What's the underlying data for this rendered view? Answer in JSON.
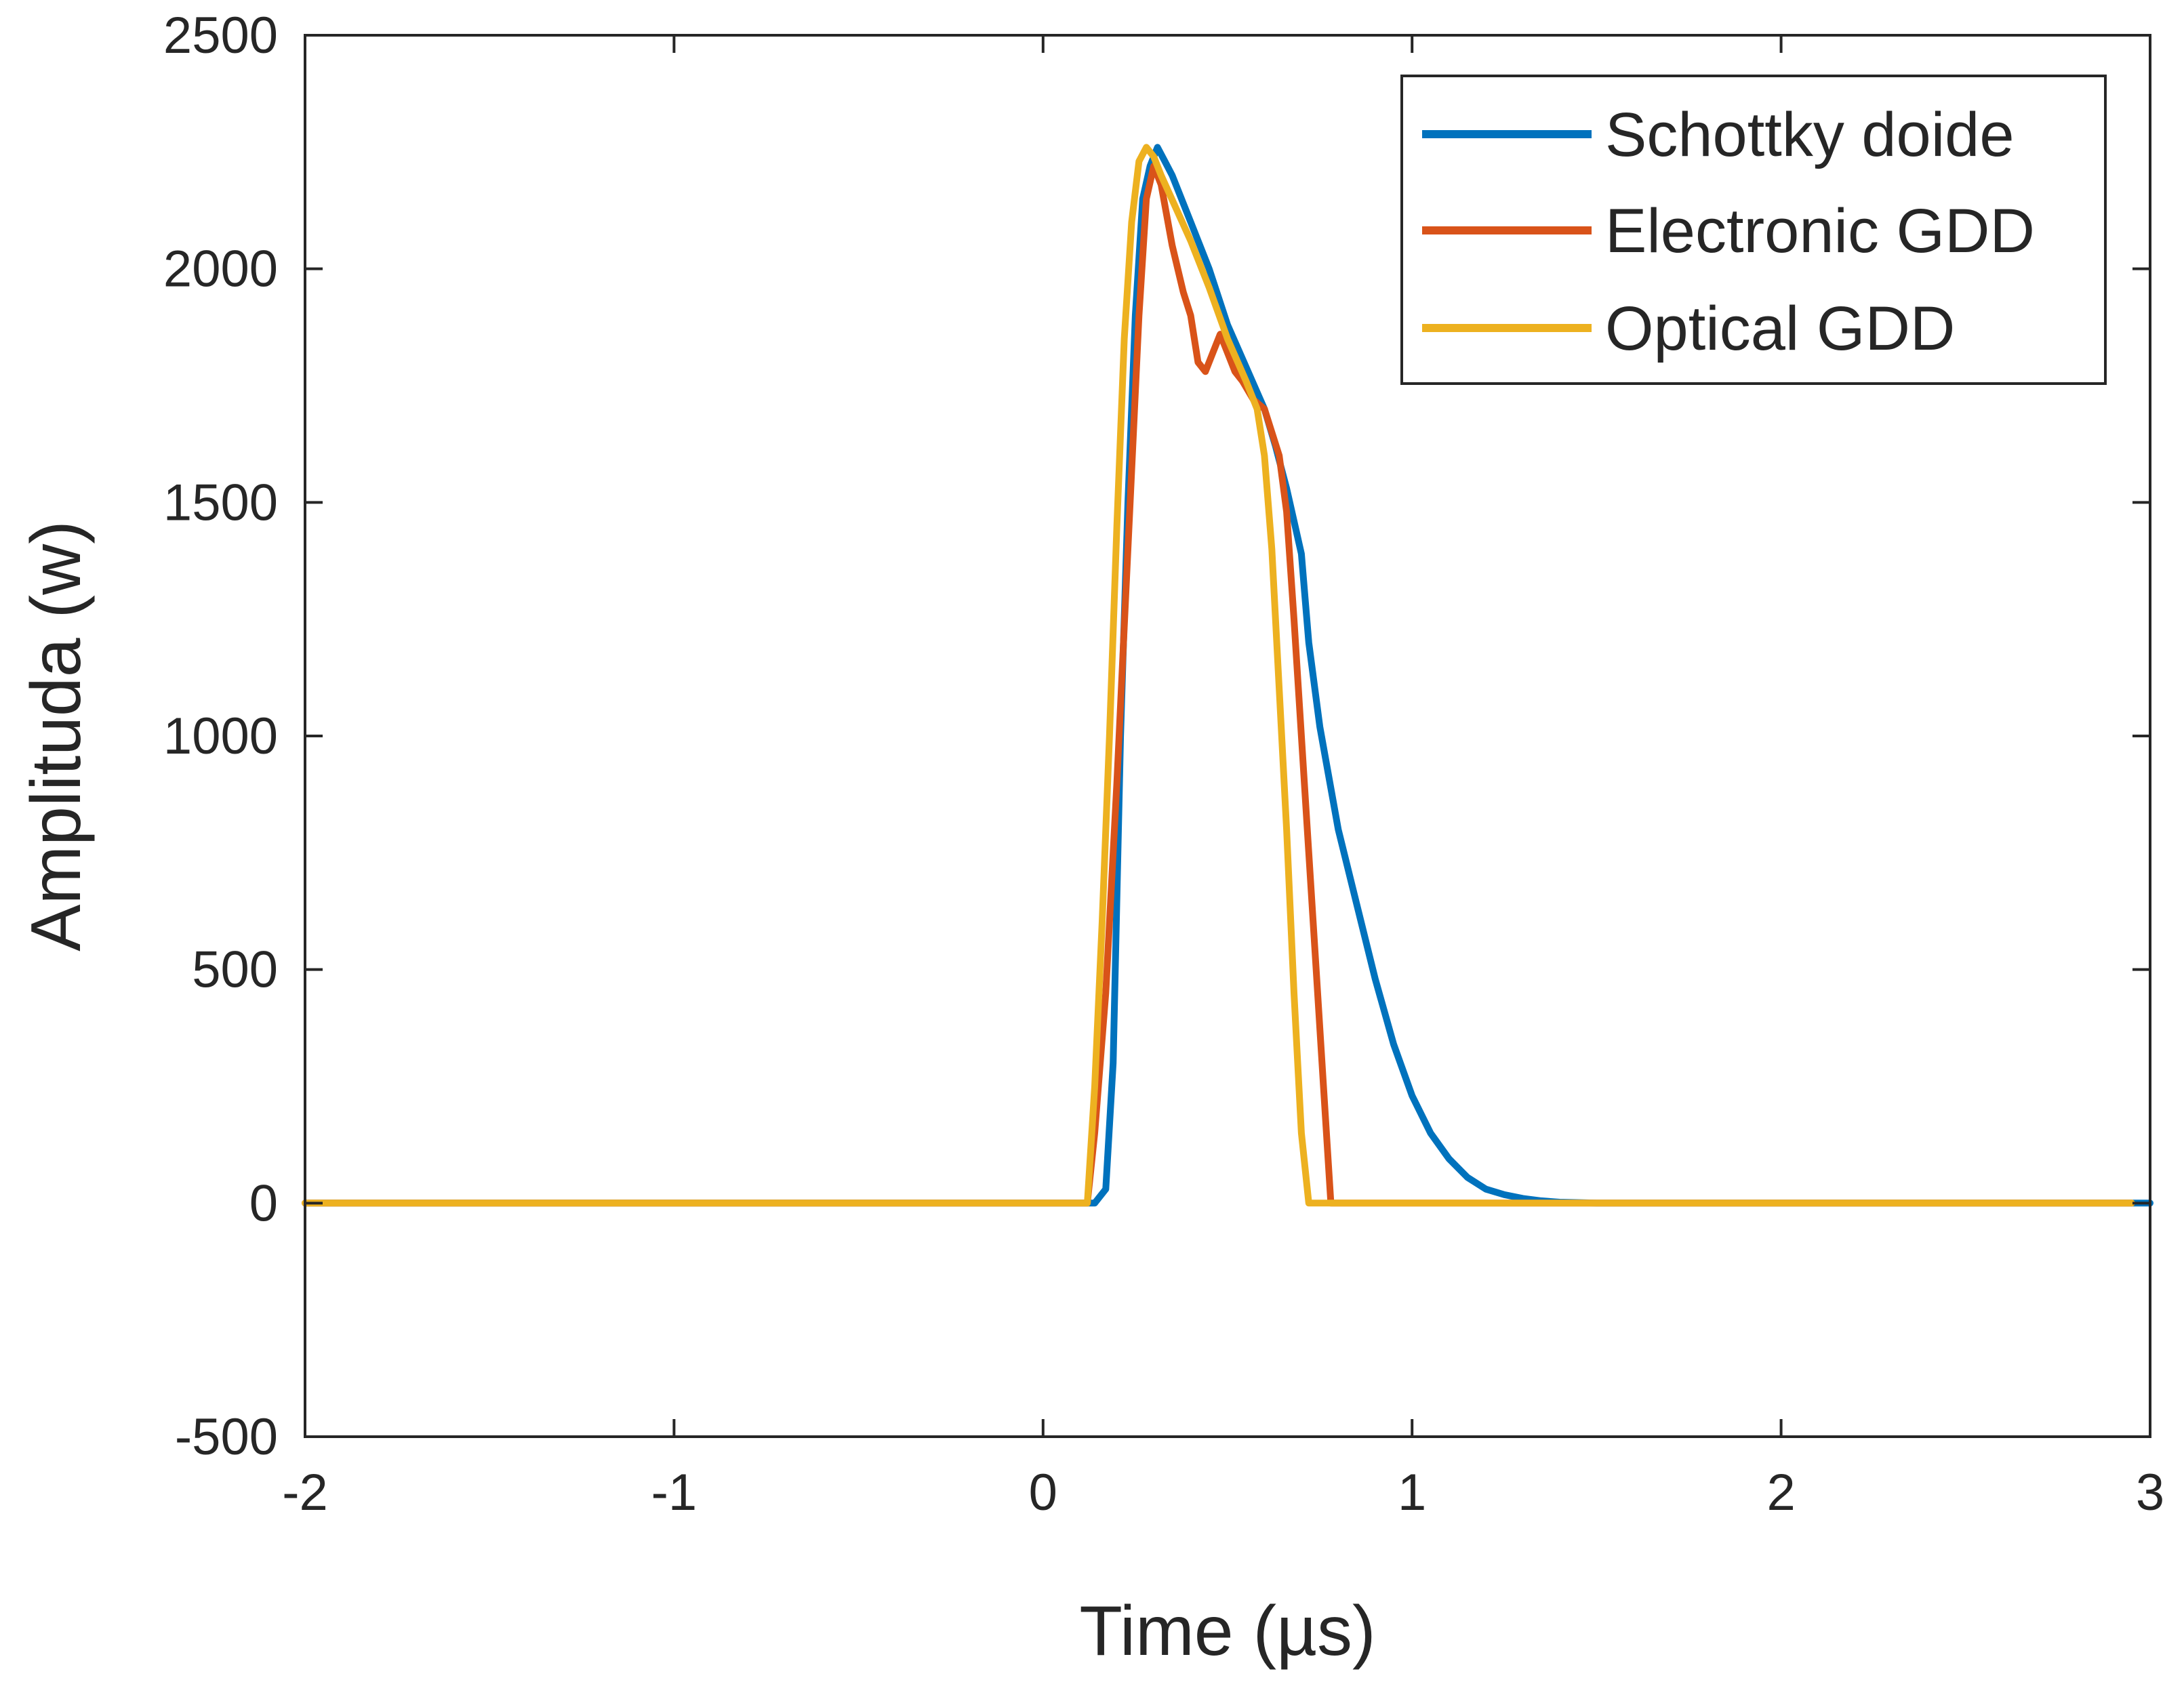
{
  "chart_data": {
    "type": "line",
    "title": "",
    "xlabel": "Time (µs)",
    "ylabel": "Amplituda (w)",
    "xlim": [
      -2,
      3
    ],
    "ylim": [
      -500,
      2500
    ],
    "xticks": [
      -2,
      -1,
      0,
      1,
      2,
      3
    ],
    "yticks": [
      -500,
      0,
      500,
      1000,
      1500,
      2000,
      2500
    ],
    "xtick_labels": [
      "-2",
      "-1",
      "0",
      "1",
      "2",
      "3"
    ],
    "ytick_labels": [
      "-500",
      "0",
      "500",
      "1000",
      "1500",
      "2000",
      "2500"
    ],
    "grid": false,
    "legend_position": "top-right",
    "series": [
      {
        "name": "Schottky doide",
        "color": "#0072BD",
        "x": [
          -2.0,
          0.14,
          0.17,
          0.19,
          0.21,
          0.23,
          0.25,
          0.27,
          0.29,
          0.31,
          0.33,
          0.35,
          0.4,
          0.45,
          0.5,
          0.55,
          0.6,
          0.63,
          0.66,
          0.68,
          0.7,
          0.72,
          0.75,
          0.8,
          0.85,
          0.9,
          0.95,
          1.0,
          1.05,
          1.1,
          1.15,
          1.2,
          1.25,
          1.3,
          1.35,
          1.4,
          1.5,
          1.6,
          3.0
        ],
        "y": [
          0,
          0,
          30,
          300,
          1000,
          1500,
          1900,
          2150,
          2220,
          2260,
          2230,
          2200,
          2100,
          2000,
          1880,
          1790,
          1700,
          1620,
          1530,
          1460,
          1390,
          1200,
          1020,
          800,
          640,
          480,
          340,
          230,
          150,
          95,
          55,
          30,
          18,
          10,
          5,
          2,
          0,
          0,
          0
        ]
      },
      {
        "name": "Electronic GDD",
        "color": "#D95319",
        "x": [
          -2.0,
          -1.88,
          0.12,
          0.14,
          0.17,
          0.2,
          0.23,
          0.26,
          0.28,
          0.3,
          0.32,
          0.35,
          0.38,
          0.4,
          0.42,
          0.44,
          0.46,
          0.48,
          0.5,
          0.52,
          0.54,
          0.57,
          0.6,
          0.62,
          0.64,
          0.66,
          0.68,
          0.7,
          0.72,
          0.74,
          0.76,
          0.78,
          2.74,
          2.95
        ],
        "y": [
          0,
          0,
          0,
          150,
          450,
          900,
          1400,
          1900,
          2150,
          2220,
          2180,
          2050,
          1950,
          1900,
          1800,
          1780,
          1820,
          1860,
          1820,
          1780,
          1760,
          1720,
          1700,
          1650,
          1600,
          1480,
          1250,
          1000,
          750,
          500,
          250,
          0,
          0,
          0
        ]
      },
      {
        "name": "Optical GDD",
        "color": "#EDB120",
        "x": [
          -2.0,
          0.12,
          0.14,
          0.16,
          0.18,
          0.2,
          0.22,
          0.24,
          0.26,
          0.28,
          0.3,
          0.32,
          0.36,
          0.4,
          0.45,
          0.5,
          0.55,
          0.58,
          0.6,
          0.62,
          0.64,
          0.66,
          0.68,
          0.7,
          0.72,
          2.95
        ],
        "y": [
          0,
          0,
          250,
          600,
          1000,
          1450,
          1850,
          2100,
          2230,
          2260,
          2240,
          2200,
          2130,
          2060,
          1960,
          1850,
          1760,
          1700,
          1600,
          1400,
          1100,
          800,
          450,
          150,
          0,
          0
        ]
      }
    ]
  }
}
